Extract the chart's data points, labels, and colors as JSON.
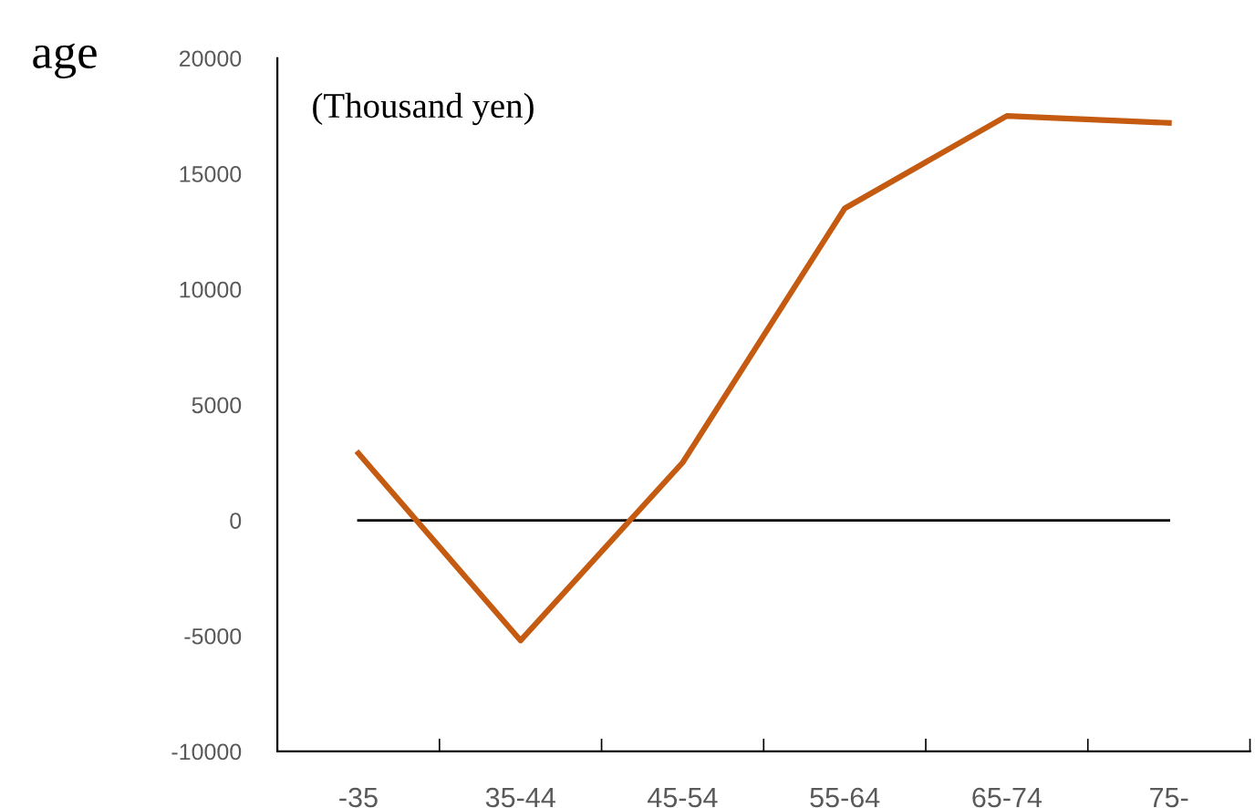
{
  "chart_data": {
    "type": "line",
    "xlabel": "age",
    "ylabel": "(Thousand yen)",
    "categories": [
      "-35",
      "35-44",
      "45-54",
      "55-64",
      "65-74",
      "75-"
    ],
    "series": [
      {
        "color": "#c55a11",
        "values": [
          2900,
          -5200,
          2500,
          13500,
          17500,
          17200
        ]
      }
    ],
    "ylim": [
      -10000,
      20000
    ],
    "yticks": [
      -10000,
      -5000,
      0,
      5000,
      10000,
      15000,
      20000
    ],
    "ref_lines": [
      {
        "axis": "y",
        "value": 0,
        "color": "#000000"
      }
    ],
    "grid": false,
    "legend": false,
    "marker": "none",
    "line_style": "solid"
  }
}
